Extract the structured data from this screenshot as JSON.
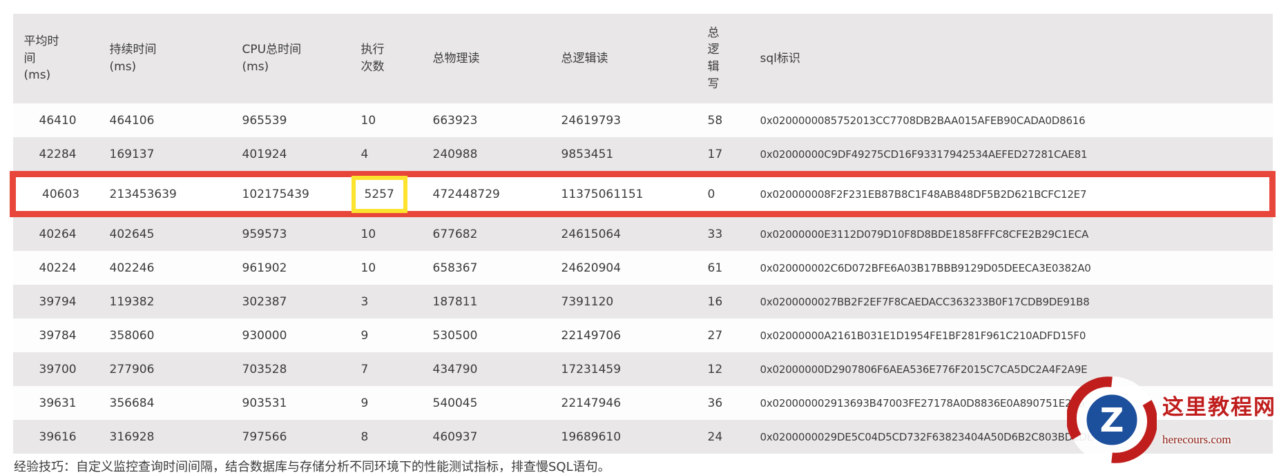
{
  "table": {
    "columns": [
      "平均时\n间\n(ms)",
      "持续时间\n(ms)",
      "CPU总时间\n(ms)",
      "执行\n次数",
      "总物理读",
      "总逻辑读",
      "总\n逻\n辑\n写",
      "sql标识"
    ],
    "rows": [
      {
        "cells": [
          "46410",
          "464106",
          "965539",
          "10",
          "663923",
          "24619793",
          "58",
          "0x0200000085752013CC7708DB2BAA015AFEB90CADA0D8616"
        ]
      },
      {
        "cells": [
          "42284",
          "169137",
          "401924",
          "4",
          "240988",
          "9853451",
          "17",
          "0x02000000C9DF49275CD16F93317942534AEFED27281CAE81"
        ]
      },
      {
        "cells": [
          "40603",
          "213453639",
          "102175439",
          "5257",
          "472448729",
          "11375061151",
          "0",
          "0x020000008F2F231EB87B8C1F48AB848DF5B2D621BCFC12E7"
        ]
      },
      {
        "cells": [
          "40264",
          "402645",
          "959573",
          "10",
          "677682",
          "24615064",
          "33",
          "0x02000000E3112D079D10F8D8BDE1858FFFC8CFE2B29C1ECA"
        ]
      },
      {
        "cells": [
          "40224",
          "402246",
          "961902",
          "10",
          "658367",
          "24620904",
          "61",
          "0x020000002C6D072BFE6A03B17BBB9129D05DEECA3E0382A0"
        ]
      },
      {
        "cells": [
          "39794",
          "119382",
          "302387",
          "3",
          "187811",
          "7391120",
          "16",
          "0x0200000027BB2F2EF7F8CAEDACC363233B0F17CDB9DE91B8"
        ]
      },
      {
        "cells": [
          "39784",
          "358060",
          "930000",
          "9",
          "530500",
          "22149706",
          "27",
          "0x02000000A2161B031E1D1954FE1BF281F961C210ADFD15F0"
        ]
      },
      {
        "cells": [
          "39700",
          "277906",
          "703528",
          "7",
          "434790",
          "17231459",
          "12",
          "0x02000000D2907806F6AEA536E776F2015C7CA5DC2A4F2A9E"
        ]
      },
      {
        "cells": [
          "39631",
          "356684",
          "903531",
          "9",
          "540045",
          "22147946",
          "36",
          "0x020000002913693B47003FE27178A0D8836E0A890751E2C5"
        ]
      },
      {
        "cells": [
          "39616",
          "316928",
          "797566",
          "8",
          "460937",
          "19689610",
          "24",
          "0x0200000029DE5C04D5CD732F63823404A50D6B2C803BDEDE"
        ]
      }
    ]
  },
  "highlight": {
    "row_index": 2,
    "cell_index": 3,
    "row_border_color": "#e8463a",
    "cell_border_color": "#fce32e"
  },
  "footer": {
    "text": "经验技巧：自定义监控查询时间间隔，结合数据库与存储分析不同环境下的性能测试指标，排查慢SQL语句。"
  },
  "watermark": {
    "site_name": "这里教程网",
    "site_url": "herecours.com",
    "logo_letter": "Z",
    "brand_red": "#c01d1d",
    "brand_blue": "#1c4f9c"
  }
}
